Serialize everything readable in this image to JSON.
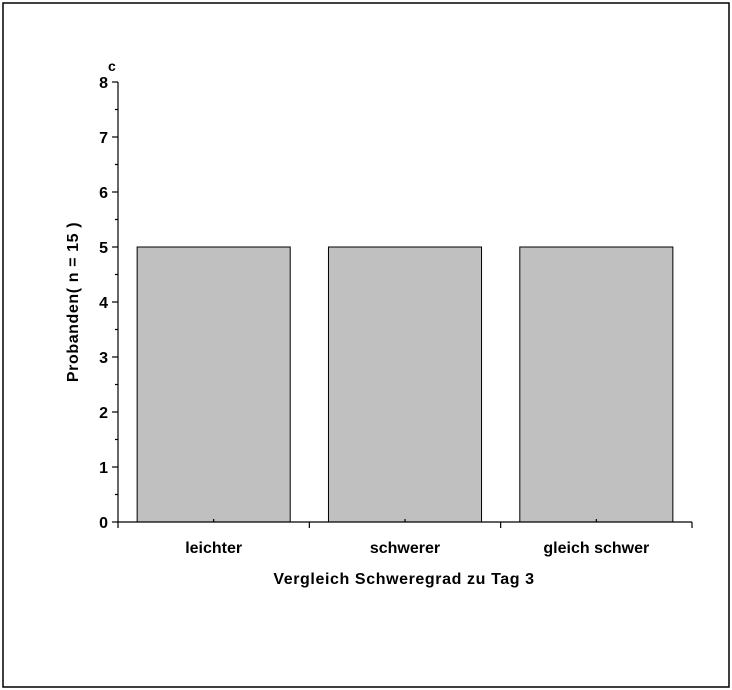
{
  "chart_data": {
    "type": "bar",
    "panel_label": "c",
    "categories": [
      "leichter",
      "schwerer",
      "gleich schwer"
    ],
    "values": [
      5,
      5,
      5
    ],
    "title": "",
    "xlabel": "Vergleich Schweregrad zu Tag 3",
    "ylabel": "Probanden( n = 15 )",
    "ylim": [
      0,
      8
    ],
    "yticks": [
      0,
      1,
      2,
      3,
      4,
      5,
      6,
      7,
      8
    ],
    "grid": false,
    "legend": "none",
    "colors": {
      "bar_fill": "#c0c0c0",
      "bar_stroke": "#000000"
    }
  }
}
